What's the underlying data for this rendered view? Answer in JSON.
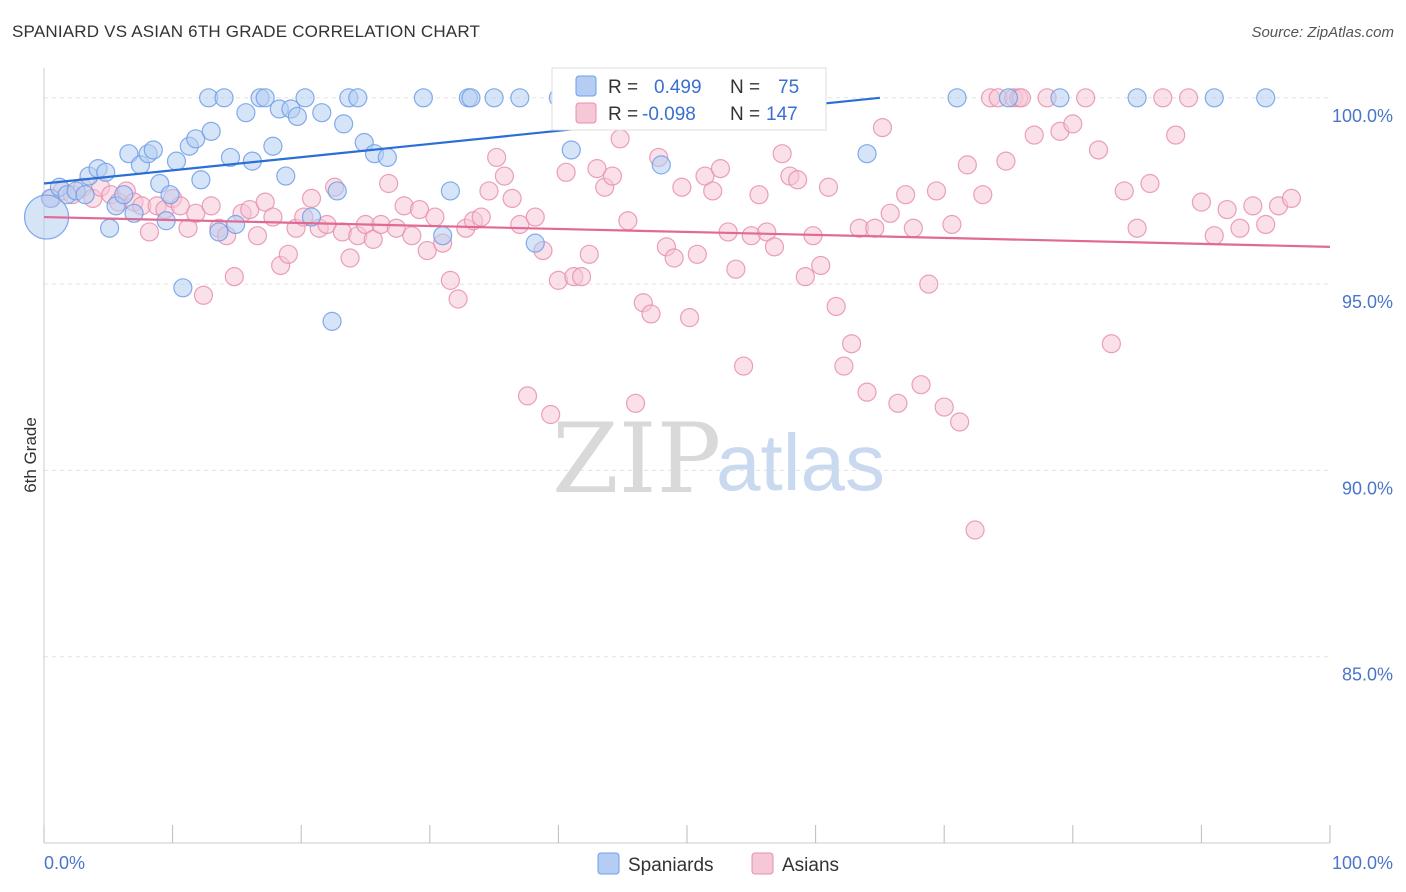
{
  "title": "SPANIARD VS ASIAN 6TH GRADE CORRELATION CHART",
  "source": "Source: ZipAtlas.com",
  "chart_data": {
    "type": "scatter",
    "title": "SPANIARD VS ASIAN 6TH GRADE CORRELATION CHART",
    "xlabel": "",
    "ylabel": "6th Grade",
    "xlim": [
      0,
      100
    ],
    "ylim": [
      80.0,
      100.8
    ],
    "x_tick_labels": [
      "0.0%",
      "100.0%"
    ],
    "y_ticks": [
      100.0,
      95.0,
      90.0,
      85.0
    ],
    "y_tick_labels": [
      "100.0%",
      "95.0%",
      "90.0%",
      "85.0%"
    ],
    "grid": true,
    "legend_position": "top-center",
    "watermark": {
      "zip": "ZIP",
      "atlas": "atlas"
    },
    "series": [
      {
        "name": "Spaniards",
        "color": "#6f9ee8",
        "fill": "#b5cdf3",
        "R_label": "R =",
        "R": "0.499",
        "N_label": "N =",
        "N": "75",
        "trend": {
          "x0": 0,
          "y0": 97.7,
          "x1": 65,
          "y1": 100.0
        },
        "points": [
          [
            0.5,
            97.3
          ],
          [
            1.2,
            97.6
          ],
          [
            1.8,
            97.4
          ],
          [
            2.5,
            97.5
          ],
          [
            3.2,
            97.4
          ],
          [
            3.5,
            97.9
          ],
          [
            4.2,
            98.1
          ],
          [
            4.8,
            98.0
          ],
          [
            5.1,
            96.5
          ],
          [
            5.6,
            97.1
          ],
          [
            6.2,
            97.4
          ],
          [
            6.6,
            98.5
          ],
          [
            7.0,
            96.9
          ],
          [
            7.5,
            98.2
          ],
          [
            8.1,
            98.5
          ],
          [
            8.5,
            98.6
          ],
          [
            9.0,
            97.7
          ],
          [
            9.5,
            96.7
          ],
          [
            9.8,
            97.4
          ],
          [
            10.3,
            98.3
          ],
          [
            10.8,
            94.9
          ],
          [
            11.3,
            98.7
          ],
          [
            11.8,
            98.9
          ],
          [
            12.2,
            97.8
          ],
          [
            12.8,
            100.0
          ],
          [
            13.0,
            99.1
          ],
          [
            13.6,
            96.4
          ],
          [
            14.0,
            100.0
          ],
          [
            14.5,
            98.4
          ],
          [
            14.9,
            96.6
          ],
          [
            15.7,
            99.6
          ],
          [
            16.2,
            98.3
          ],
          [
            16.8,
            100.0
          ],
          [
            17.2,
            100.0
          ],
          [
            17.8,
            98.7
          ],
          [
            18.3,
            99.7
          ],
          [
            18.8,
            97.9
          ],
          [
            19.2,
            99.7
          ],
          [
            19.7,
            99.5
          ],
          [
            20.3,
            100.0
          ],
          [
            20.8,
            96.8
          ],
          [
            21.6,
            99.6
          ],
          [
            22.4,
            94.0
          ],
          [
            22.8,
            97.5
          ],
          [
            23.3,
            99.3
          ],
          [
            23.7,
            100.0
          ],
          [
            24.4,
            100.0
          ],
          [
            24.9,
            98.8
          ],
          [
            25.7,
            98.5
          ],
          [
            26.7,
            98.4
          ],
          [
            29.5,
            100.0
          ],
          [
            31.0,
            96.3
          ],
          [
            31.6,
            97.5
          ],
          [
            33.0,
            100.0
          ],
          [
            33.2,
            100.0
          ],
          [
            35.0,
            100.0
          ],
          [
            37.0,
            100.0
          ],
          [
            38.2,
            96.1
          ],
          [
            40.0,
            100.0
          ],
          [
            41.0,
            98.6
          ],
          [
            43.0,
            100.0
          ],
          [
            45.0,
            100.0
          ],
          [
            47.0,
            100.0
          ],
          [
            49.0,
            100.0
          ],
          [
            52.0,
            100.0
          ],
          [
            59.0,
            100.0
          ],
          [
            71.0,
            100.0
          ],
          [
            75.0,
            100.0
          ],
          [
            79.0,
            100.0
          ],
          [
            85.0,
            100.0
          ],
          [
            91.0,
            100.0
          ],
          [
            95.0,
            100.0
          ],
          [
            64.0,
            98.5
          ],
          [
            48.0,
            98.2
          ],
          [
            0.2,
            96.8
          ]
        ]
      },
      {
        "name": "Asians",
        "color": "#e88fae",
        "fill": "#f6c7d6",
        "R_label": "R =",
        "R": "-0.098",
        "N_label": "N =",
        "N": "147",
        "trend": {
          "x0": 0,
          "y0": 96.8,
          "x1": 100,
          "y1": 96.0
        },
        "points": [
          [
            0.6,
            97.3
          ],
          [
            1.4,
            97.5
          ],
          [
            2.2,
            97.4
          ],
          [
            3.0,
            97.6
          ],
          [
            3.8,
            97.3
          ],
          [
            4.4,
            97.6
          ],
          [
            5.2,
            97.4
          ],
          [
            5.8,
            97.2
          ],
          [
            6.4,
            97.5
          ],
          [
            7.0,
            97.2
          ],
          [
            7.6,
            97.1
          ],
          [
            8.2,
            96.4
          ],
          [
            8.8,
            97.1
          ],
          [
            9.4,
            97.0
          ],
          [
            10.0,
            97.3
          ],
          [
            10.6,
            97.1
          ],
          [
            11.2,
            96.5
          ],
          [
            11.8,
            96.9
          ],
          [
            12.4,
            94.7
          ],
          [
            13.0,
            97.1
          ],
          [
            13.6,
            96.5
          ],
          [
            14.2,
            96.3
          ],
          [
            14.8,
            95.2
          ],
          [
            15.4,
            96.9
          ],
          [
            16.0,
            97.0
          ],
          [
            16.6,
            96.3
          ],
          [
            17.2,
            97.2
          ],
          [
            17.8,
            96.8
          ],
          [
            18.4,
            95.5
          ],
          [
            19.0,
            95.8
          ],
          [
            19.6,
            96.5
          ],
          [
            20.2,
            96.8
          ],
          [
            20.8,
            97.3
          ],
          [
            21.4,
            96.5
          ],
          [
            22.0,
            96.6
          ],
          [
            22.6,
            97.6
          ],
          [
            23.2,
            96.4
          ],
          [
            23.8,
            95.7
          ],
          [
            24.4,
            96.3
          ],
          [
            25.0,
            96.6
          ],
          [
            25.6,
            96.2
          ],
          [
            26.2,
            96.6
          ],
          [
            26.8,
            97.7
          ],
          [
            27.4,
            96.5
          ],
          [
            28.0,
            97.1
          ],
          [
            28.6,
            96.3
          ],
          [
            29.2,
            97.0
          ],
          [
            29.8,
            95.9
          ],
          [
            30.4,
            96.8
          ],
          [
            31.0,
            96.1
          ],
          [
            31.6,
            95.1
          ],
          [
            32.2,
            94.6
          ],
          [
            32.8,
            96.5
          ],
          [
            33.4,
            96.7
          ],
          [
            34.0,
            96.8
          ],
          [
            34.6,
            97.5
          ],
          [
            35.2,
            98.4
          ],
          [
            35.8,
            97.9
          ],
          [
            36.4,
            97.3
          ],
          [
            37.0,
            96.6
          ],
          [
            37.6,
            92.0
          ],
          [
            38.2,
            96.8
          ],
          [
            38.8,
            95.9
          ],
          [
            39.4,
            91.5
          ],
          [
            40.0,
            95.1
          ],
          [
            40.6,
            98.0
          ],
          [
            41.2,
            95.2
          ],
          [
            41.8,
            95.2
          ],
          [
            42.4,
            95.8
          ],
          [
            43.0,
            98.1
          ],
          [
            43.6,
            97.6
          ],
          [
            44.2,
            97.9
          ],
          [
            44.8,
            98.9
          ],
          [
            45.4,
            96.7
          ],
          [
            46.0,
            91.8
          ],
          [
            46.6,
            94.5
          ],
          [
            47.2,
            94.2
          ],
          [
            47.8,
            98.4
          ],
          [
            48.4,
            96.0
          ],
          [
            49.0,
            95.7
          ],
          [
            49.6,
            97.6
          ],
          [
            50.2,
            94.1
          ],
          [
            50.8,
            95.8
          ],
          [
            51.4,
            97.9
          ],
          [
            52.0,
            97.5
          ],
          [
            52.6,
            98.1
          ],
          [
            53.2,
            96.4
          ],
          [
            53.8,
            95.4
          ],
          [
            54.4,
            92.8
          ],
          [
            55.0,
            96.3
          ],
          [
            55.6,
            97.4
          ],
          [
            56.2,
            96.4
          ],
          [
            56.8,
            96.0
          ],
          [
            57.4,
            98.5
          ],
          [
            58.0,
            97.9
          ],
          [
            58.6,
            97.8
          ],
          [
            59.2,
            95.2
          ],
          [
            59.8,
            96.3
          ],
          [
            60.4,
            95.5
          ],
          [
            61.0,
            97.6
          ],
          [
            61.6,
            94.4
          ],
          [
            62.2,
            92.8
          ],
          [
            62.8,
            93.4
          ],
          [
            63.4,
            96.5
          ],
          [
            64.0,
            92.1
          ],
          [
            64.6,
            96.5
          ],
          [
            65.2,
            99.2
          ],
          [
            65.8,
            96.9
          ],
          [
            66.4,
            91.8
          ],
          [
            67.0,
            97.4
          ],
          [
            67.6,
            96.5
          ],
          [
            68.2,
            92.3
          ],
          [
            68.8,
            95.0
          ],
          [
            69.4,
            97.5
          ],
          [
            70.0,
            91.7
          ],
          [
            70.6,
            96.6
          ],
          [
            71.2,
            91.3
          ],
          [
            71.8,
            98.2
          ],
          [
            72.4,
            88.4
          ],
          [
            73.0,
            97.4
          ],
          [
            73.6,
            100.0
          ],
          [
            74.2,
            100.0
          ],
          [
            74.8,
            98.3
          ],
          [
            75.4,
            100.0
          ],
          [
            75.8,
            100.0
          ],
          [
            76.0,
            100.0
          ],
          [
            77.0,
            99.0
          ],
          [
            78.0,
            100.0
          ],
          [
            79.0,
            99.1
          ],
          [
            80.0,
            99.3
          ],
          [
            81.0,
            100.0
          ],
          [
            82.0,
            98.6
          ],
          [
            83.0,
            93.4
          ],
          [
            84.0,
            97.5
          ],
          [
            85.0,
            96.5
          ],
          [
            86.0,
            97.7
          ],
          [
            87.0,
            100.0
          ],
          [
            88.0,
            99.0
          ],
          [
            89.0,
            100.0
          ],
          [
            90.0,
            97.2
          ],
          [
            91.0,
            96.3
          ],
          [
            92.0,
            97.0
          ],
          [
            93.0,
            96.5
          ],
          [
            94.0,
            97.1
          ],
          [
            95.0,
            96.6
          ],
          [
            96.0,
            97.1
          ],
          [
            97.0,
            97.3
          ]
        ]
      }
    ]
  },
  "legend_bottom": [
    "Spaniards",
    "Asians"
  ]
}
